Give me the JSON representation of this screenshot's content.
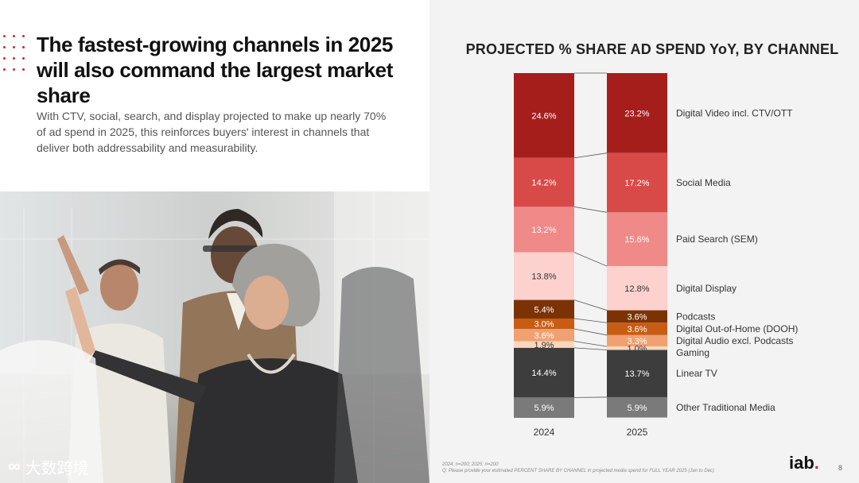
{
  "slide": {
    "headline": "The fastest-growing channels in 2025 will also command the largest market share",
    "subtext": "With CTV, social, search, and display projected to make up nearly 70% of ad spend in 2025, this reinforces buyers' interest in channels that deliver both addressability and measurability.",
    "watermark": "大数跨境",
    "logo": "iab",
    "logo_dot": ".",
    "page_number": "8"
  },
  "footnote": {
    "line1": "2024: n=200; 2025: n=200",
    "line2": "Q: Please provide your estimated PERCENT SHARE BY CHANNEL in projected media spend for FULL YEAR 2025 (Jan to Dec)"
  },
  "chart_data": {
    "type": "bar",
    "stacked": true,
    "title": "PROJECTED % SHARE AD SPEND YoY, BY CHANNEL",
    "categories": [
      "2024",
      "2025"
    ],
    "ylim": [
      0,
      100
    ],
    "series": [
      {
        "name": "Digital Video incl. CTV/OTT",
        "values": [
          24.6,
          23.2
        ],
        "labels": [
          "24.6%",
          "23.2%"
        ],
        "color": "#a61e1c",
        "text_color": "#ffffff"
      },
      {
        "name": "Social Media",
        "values": [
          14.2,
          17.2
        ],
        "labels": [
          "14.2%",
          "17.2%"
        ],
        "color": "#d84a48",
        "text_color": "#ffffff"
      },
      {
        "name": "Paid Search (SEM)",
        "values": [
          13.2,
          15.6
        ],
        "labels": [
          "13.2%",
          "15.6%"
        ],
        "color": "#f08a88",
        "text_color": "#ffffff"
      },
      {
        "name": "Digital Display",
        "values": [
          13.8,
          12.8
        ],
        "labels": [
          "13.8%",
          "12.8%"
        ],
        "color": "#fcd1ce",
        "text_color": "#333333"
      },
      {
        "name": "Podcasts",
        "values": [
          5.4,
          3.6
        ],
        "labels": [
          "5.4%",
          "3.6%"
        ],
        "color": "#7b3306",
        "text_color": "#ffffff"
      },
      {
        "name": "Digital Out-of-Home (DOOH)",
        "values": [
          3.0,
          3.6
        ],
        "labels": [
          "3.0%",
          "3.6%"
        ],
        "color": "#c75d14",
        "text_color": "#ffffff"
      },
      {
        "name": "Digital Audio excl. Podcasts",
        "values": [
          3.6,
          3.3
        ],
        "labels": [
          "3.6%",
          "3.3%"
        ],
        "color": "#f0a172",
        "text_color": "#ffffff"
      },
      {
        "name": "Gaming",
        "values": [
          1.9,
          1.0
        ],
        "labels": [
          "1.9%",
          "1.0%"
        ],
        "color": "#fad7bc",
        "text_color": "#333333"
      },
      {
        "name": "Linear TV",
        "values": [
          14.4,
          13.7
        ],
        "labels": [
          "14.4%",
          "13.7%"
        ],
        "color": "#3d3d3d",
        "text_color": "#ffffff"
      },
      {
        "name": "Other Traditional Media",
        "values": [
          5.9,
          5.9
        ],
        "labels": [
          "5.9%",
          "5.9%"
        ],
        "color": "#7a7a7a",
        "text_color": "#ffffff"
      }
    ]
  }
}
